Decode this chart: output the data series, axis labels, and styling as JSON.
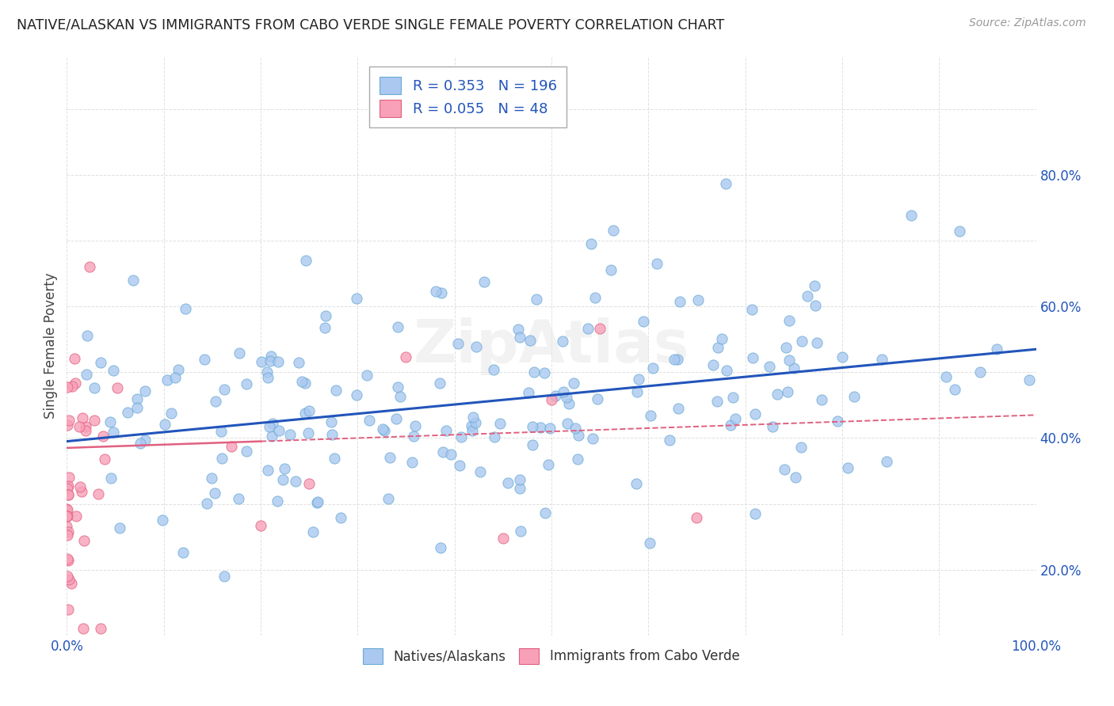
{
  "title": "NATIVE/ALASKAN VS IMMIGRANTS FROM CABO VERDE SINGLE FEMALE POVERTY CORRELATION CHART",
  "source": "Source: ZipAtlas.com",
  "ylabel": "Single Female Poverty",
  "series1_color": "#aac8f0",
  "series1_edge": "#6aaad4",
  "series2_color": "#f8a0b8",
  "series2_edge": "#e06080",
  "trend1_color": "#2255bb",
  "trend2_color": "#e06080",
  "legend_R1": "0.353",
  "legend_N1": "196",
  "legend_R2": "0.055",
  "legend_N2": "48",
  "legend_color": "#2255bb",
  "background_color": "#ffffff",
  "grid_color": "#cccccc"
}
